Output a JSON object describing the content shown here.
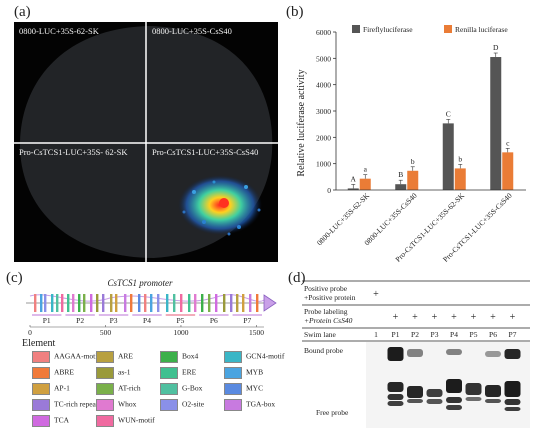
{
  "panel_a": {
    "label": "(a)",
    "quadrants": [
      {
        "id": "tl",
        "label": "0800-LUC+35S-62-SK"
      },
      {
        "id": "tr",
        "label": "0800-LUC+35S-CsS40"
      },
      {
        "id": "bl",
        "label": "Pro-CsTCS1-LUC+35S- 62-SK"
      },
      {
        "id": "br",
        "label": "Pro-CsTCS1-LUC+35S-CsS40"
      }
    ]
  },
  "panel_b": {
    "label": "(b)",
    "chart_data": {
      "type": "bar",
      "ylabel": "Relative luciferase activity",
      "ylim": [
        0,
        6000
      ],
      "yticks": [
        "0",
        "1000",
        "2000",
        "3000",
        "4000",
        "5000",
        "6000"
      ],
      "categories": [
        "0800-LUC+35S-62-SK",
        "0800-LUC+35S-CsS40",
        "Pro-CsTCS1-LUC+35S-62-SK",
        "Pro-CsTCS1-LUC+35S-CsS40"
      ],
      "series": [
        {
          "name": "Fireflyluciferase",
          "color": "#555555",
          "values": [
            60,
            220,
            2530,
            5050
          ],
          "letters": [
            "A",
            "B",
            "C",
            "D"
          ]
        },
        {
          "name": "Renilla luciferase",
          "color": "#ea7c36",
          "values": [
            430,
            730,
            820,
            1430
          ],
          "letters": [
            "a",
            "b",
            "b",
            "c"
          ]
        }
      ]
    }
  },
  "panel_c": {
    "label": "(c)",
    "title": "CsTCS1 promoter",
    "fragments": [
      "P1",
      "P2",
      "P3",
      "P4",
      "P5",
      "P6",
      "P7"
    ],
    "scale": [
      "0",
      "500",
      "1000",
      "1500"
    ],
    "element_heading": "Element",
    "elements": [
      {
        "name": "AAGAA-motif",
        "color": "#f08080"
      },
      {
        "name": "ARE",
        "color": "#b8a040"
      },
      {
        "name": "Box4",
        "color": "#3cb04a"
      },
      {
        "name": "GCN4-motif",
        "color": "#3ab6c6"
      },
      {
        "name": "ABRE",
        "color": "#f07a3a"
      },
      {
        "name": "as-1",
        "color": "#9a9a3a"
      },
      {
        "name": "ERE",
        "color": "#40c090"
      },
      {
        "name": "MYB",
        "color": "#4aa4e0"
      },
      {
        "name": "AP-1",
        "color": "#d0a040"
      },
      {
        "name": "AT-rich",
        "color": "#7ab04a"
      },
      {
        "name": "G-Box",
        "color": "#50c0a0"
      },
      {
        "name": "MYC",
        "color": "#5a8ae0"
      },
      {
        "name": "TC-rich repeats",
        "color": "#9a7ad8"
      },
      {
        "name": "Whox",
        "color": "#e07ad0"
      },
      {
        "name": "O2-site",
        "color": "#8a90e8"
      },
      {
        "name": "TGA-box",
        "color": "#c87ae0"
      },
      {
        "name": "TCA",
        "color": "#d06ae0"
      },
      {
        "name": "WUN-motif",
        "color": "#f06aa0"
      }
    ]
  },
  "panel_d": {
    "label": "(d)",
    "row1_label_line1": "Positive probe",
    "row1_label_line2": "+Positive protein",
    "row1_marks": [
      "+",
      "",
      "",
      "",
      "",
      "",
      "",
      ""
    ],
    "row2_label_line1": "Probe labeling",
    "row2_label_line2": "+Protein CsS40",
    "row2_marks": [
      "",
      "+",
      "+",
      "+",
      "+",
      "+",
      "+",
      "+"
    ],
    "swim_label": "Swim lane",
    "lanes": [
      "1",
      "P1",
      "P2",
      "P3",
      "P4",
      "P5",
      "P6",
      "P7"
    ],
    "bound_probe": "Bound probe",
    "free_probe": "Free probe"
  }
}
